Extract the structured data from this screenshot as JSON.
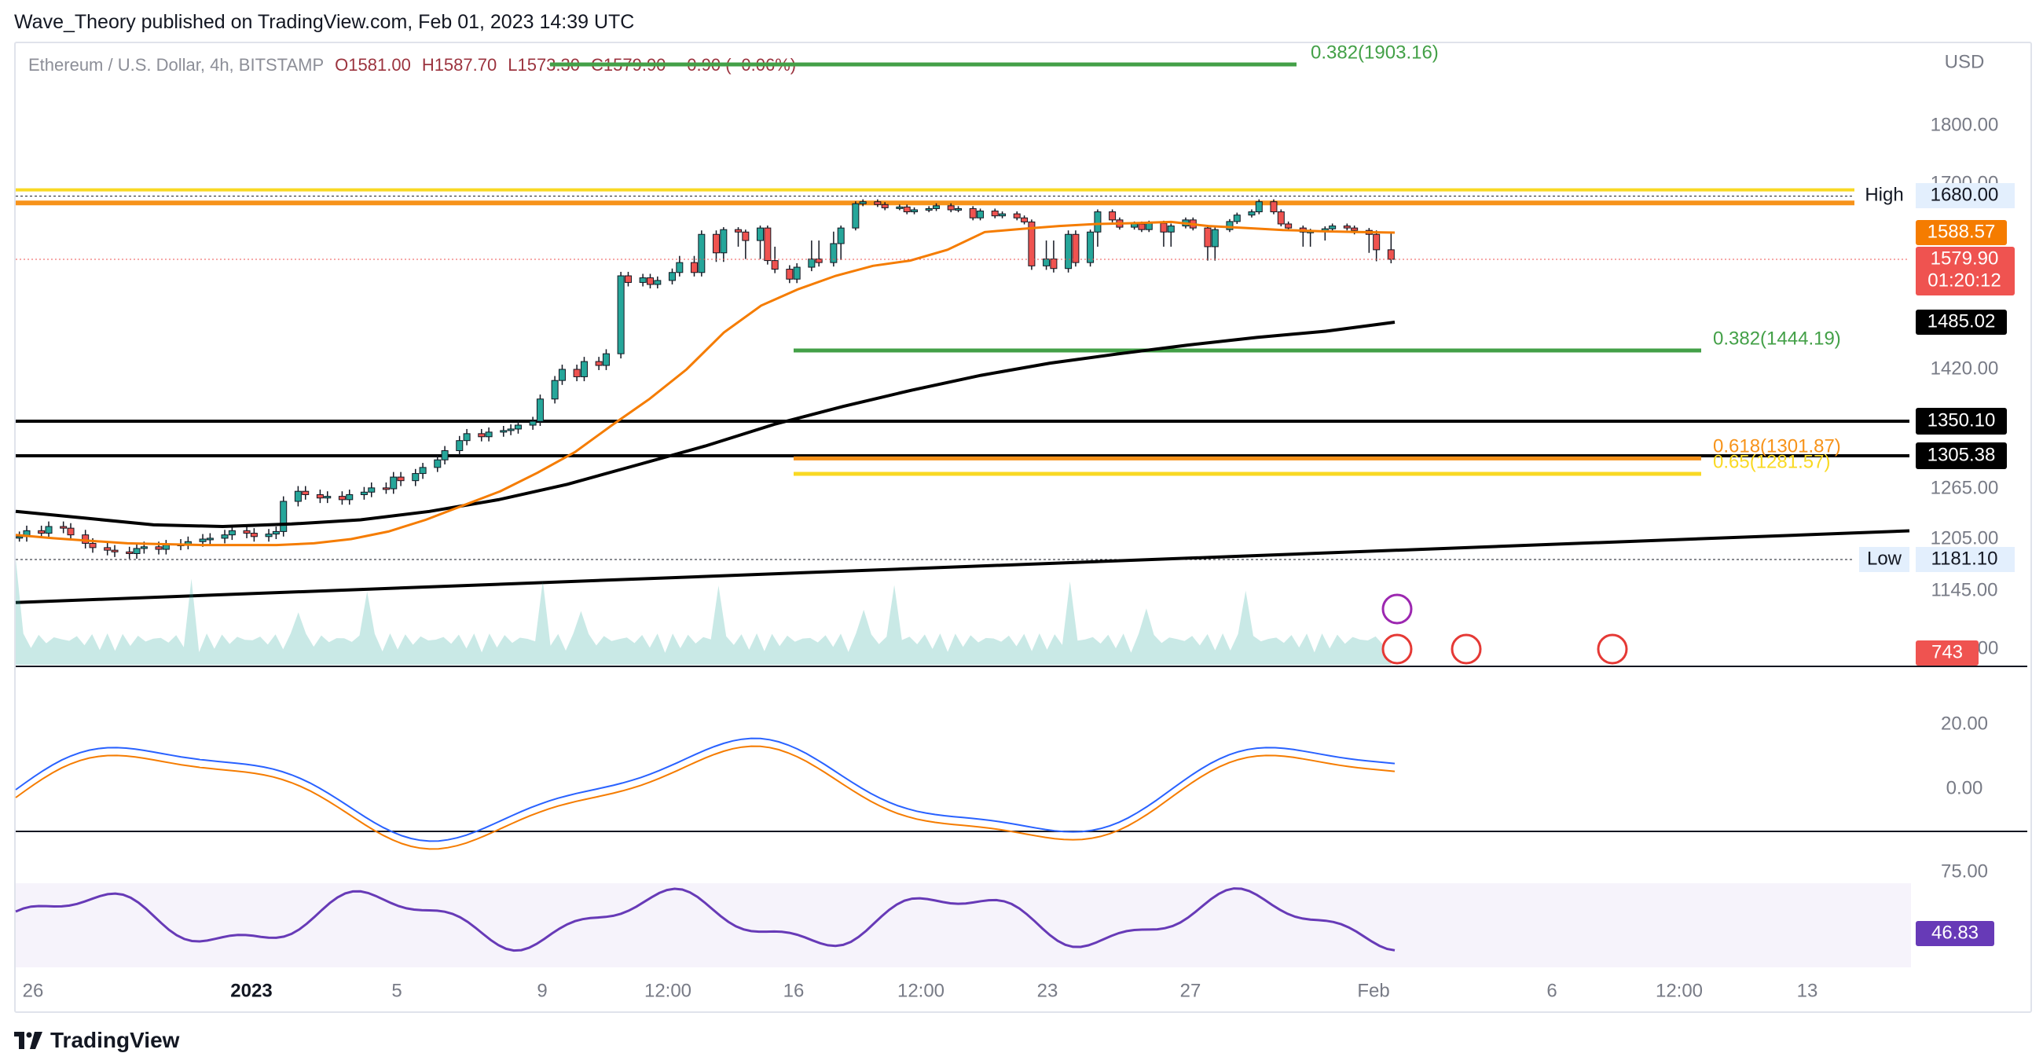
{
  "header": {
    "text": "Wave_Theory published on TradingView.com, Feb 01, 2023 14:39 UTC"
  },
  "legend": {
    "symbol": "Ethereum / U.S. Dollar, 4h, BITSTAMP",
    "open": "O1581.00",
    "high": "H1587.70",
    "low": "L1573.30",
    "close": "C1579.90",
    "change": "−0.90 (−0.06%)"
  },
  "footer": {
    "brand": "TradingView"
  },
  "colors": {
    "up": "#26a69a",
    "down": "#ef5350",
    "ema_fast": "#f57c00",
    "ema_slow": "#000000",
    "fib_green": "#43a047",
    "fib_orange": "#f7931a",
    "fib_yellow": "#f9d923",
    "rsi": "#673ab7"
  },
  "chart_data": {
    "type": "line",
    "currency": "USD",
    "price_axis": {
      "labels": [
        "1800.00",
        "1700.00",
        "1420.00",
        "1265.00",
        "1205.00",
        "1145.00",
        "1085.00"
      ],
      "visible_range": [
        1090,
        1890
      ]
    },
    "time_axis": {
      "labels": [
        "26",
        "2023",
        "5",
        "9",
        "12:00",
        "16",
        "12:00",
        "23",
        "27",
        "Feb",
        "6",
        "12:00",
        "13"
      ]
    },
    "price_line": {
      "label": "1579.90",
      "countdown": "01:20:12",
      "value": 1579.9
    },
    "ema_fast_last": {
      "label": "1588.57",
      "value": 1588.57
    },
    "ema_slow_last": {
      "label": "1485.02",
      "value": 1485.02
    },
    "levels": [
      {
        "label": "High",
        "value_label": "1680.00",
        "value": 1680.0
      },
      {
        "label": "Low",
        "value_label": "1181.10",
        "value": 1181.1
      }
    ],
    "horizontal_lines": [
      {
        "value_label": "1350.10",
        "value": 1350.1
      },
      {
        "value_label": "1305.38",
        "value": 1305.38
      }
    ],
    "fibonacci": [
      {
        "text": "0.382(1903.16)",
        "value": 1903.16,
        "color": "#43a047"
      },
      {
        "text": "0.382(1444.19)",
        "value": 1444.19,
        "color": "#43a047"
      },
      {
        "text": "0.618(1301.87)",
        "value": 1301.87,
        "color": "#f7931a"
      },
      {
        "text": "0.65(1281.57)",
        "value": 1281.57,
        "color": "#f9d923"
      }
    ],
    "resistance_band": [
      1662,
      1690
    ],
    "close_series_bars": 188,
    "close_series": [
      1208,
      1215,
      1212,
      1220,
      1218,
      1210,
      1200,
      1195,
      1192,
      1190,
      1188,
      1194,
      1196,
      1193,
      1198,
      1199,
      1202,
      1205,
      1206,
      1210,
      1215,
      1212,
      1208,
      1211,
      1214,
      1250,
      1262,
      1258,
      1254,
      1256,
      1252,
      1258,
      1261,
      1266,
      1265,
      1278,
      1274,
      1282,
      1290,
      1300,
      1312,
      1325,
      1334,
      1330,
      1336,
      1338,
      1340,
      1345,
      1350,
      1380,
      1405,
      1420,
      1410,
      1430,
      1425,
      1440,
      1555,
      1545,
      1552,
      1542,
      1548,
      1560,
      1575,
      1560,
      1588,
      1582,
      1596,
      1590,
      1586,
      1600,
      1578,
      1565,
      1550,
      1568,
      1580,
      1575,
      1585,
      1600,
      1660,
      1665,
      1658,
      1650,
      1652,
      1640,
      1645,
      1648,
      1655,
      1645,
      1648,
      1625,
      1642,
      1630,
      1635,
      1625,
      1615,
      1570,
      1580,
      1566,
      1588,
      1575,
      1590,
      1640,
      1620,
      1602,
      1610,
      1596,
      1612,
      1590,
      1605,
      1620,
      1600,
      1584,
      1596,
      1616,
      1632,
      1640,
      1665,
      1640,
      1610,
      1600,
      1590,
      1592,
      1598,
      1605,
      1600,
      1594,
      1588,
      1583,
      1579.9
    ],
    "ema_fast": [
      1210,
      1206,
      1203,
      1200,
      1199,
      1198,
      1198,
      1198,
      1200,
      1205,
      1214,
      1228,
      1245,
      1262,
      1283,
      1310,
      1345,
      1380,
      1420,
      1470,
      1510,
      1535,
      1555,
      1570,
      1578,
      1583,
      1590,
      1598,
      1605,
      1610,
      1612,
      1615,
      1605,
      1600,
      1595,
      1592,
      1590,
      1588.57
    ],
    "ema_slow": [
      1238,
      1230,
      1222,
      1220,
      1223,
      1228,
      1238,
      1252,
      1270,
      1293,
      1318,
      1346,
      1370,
      1392,
      1412,
      1428,
      1440,
      1452,
      1463,
      1472,
      1485.02
    ],
    "trend_line": {
      "from": 1175,
      "to": 1212
    },
    "volume": {
      "label": "743",
      "value": 743
    },
    "macd": {
      "axis_labels": [
        "20.00",
        "0.00"
      ]
    },
    "rsi": {
      "axis_label": "75.00",
      "label": "46.83",
      "value": 46.83
    }
  }
}
